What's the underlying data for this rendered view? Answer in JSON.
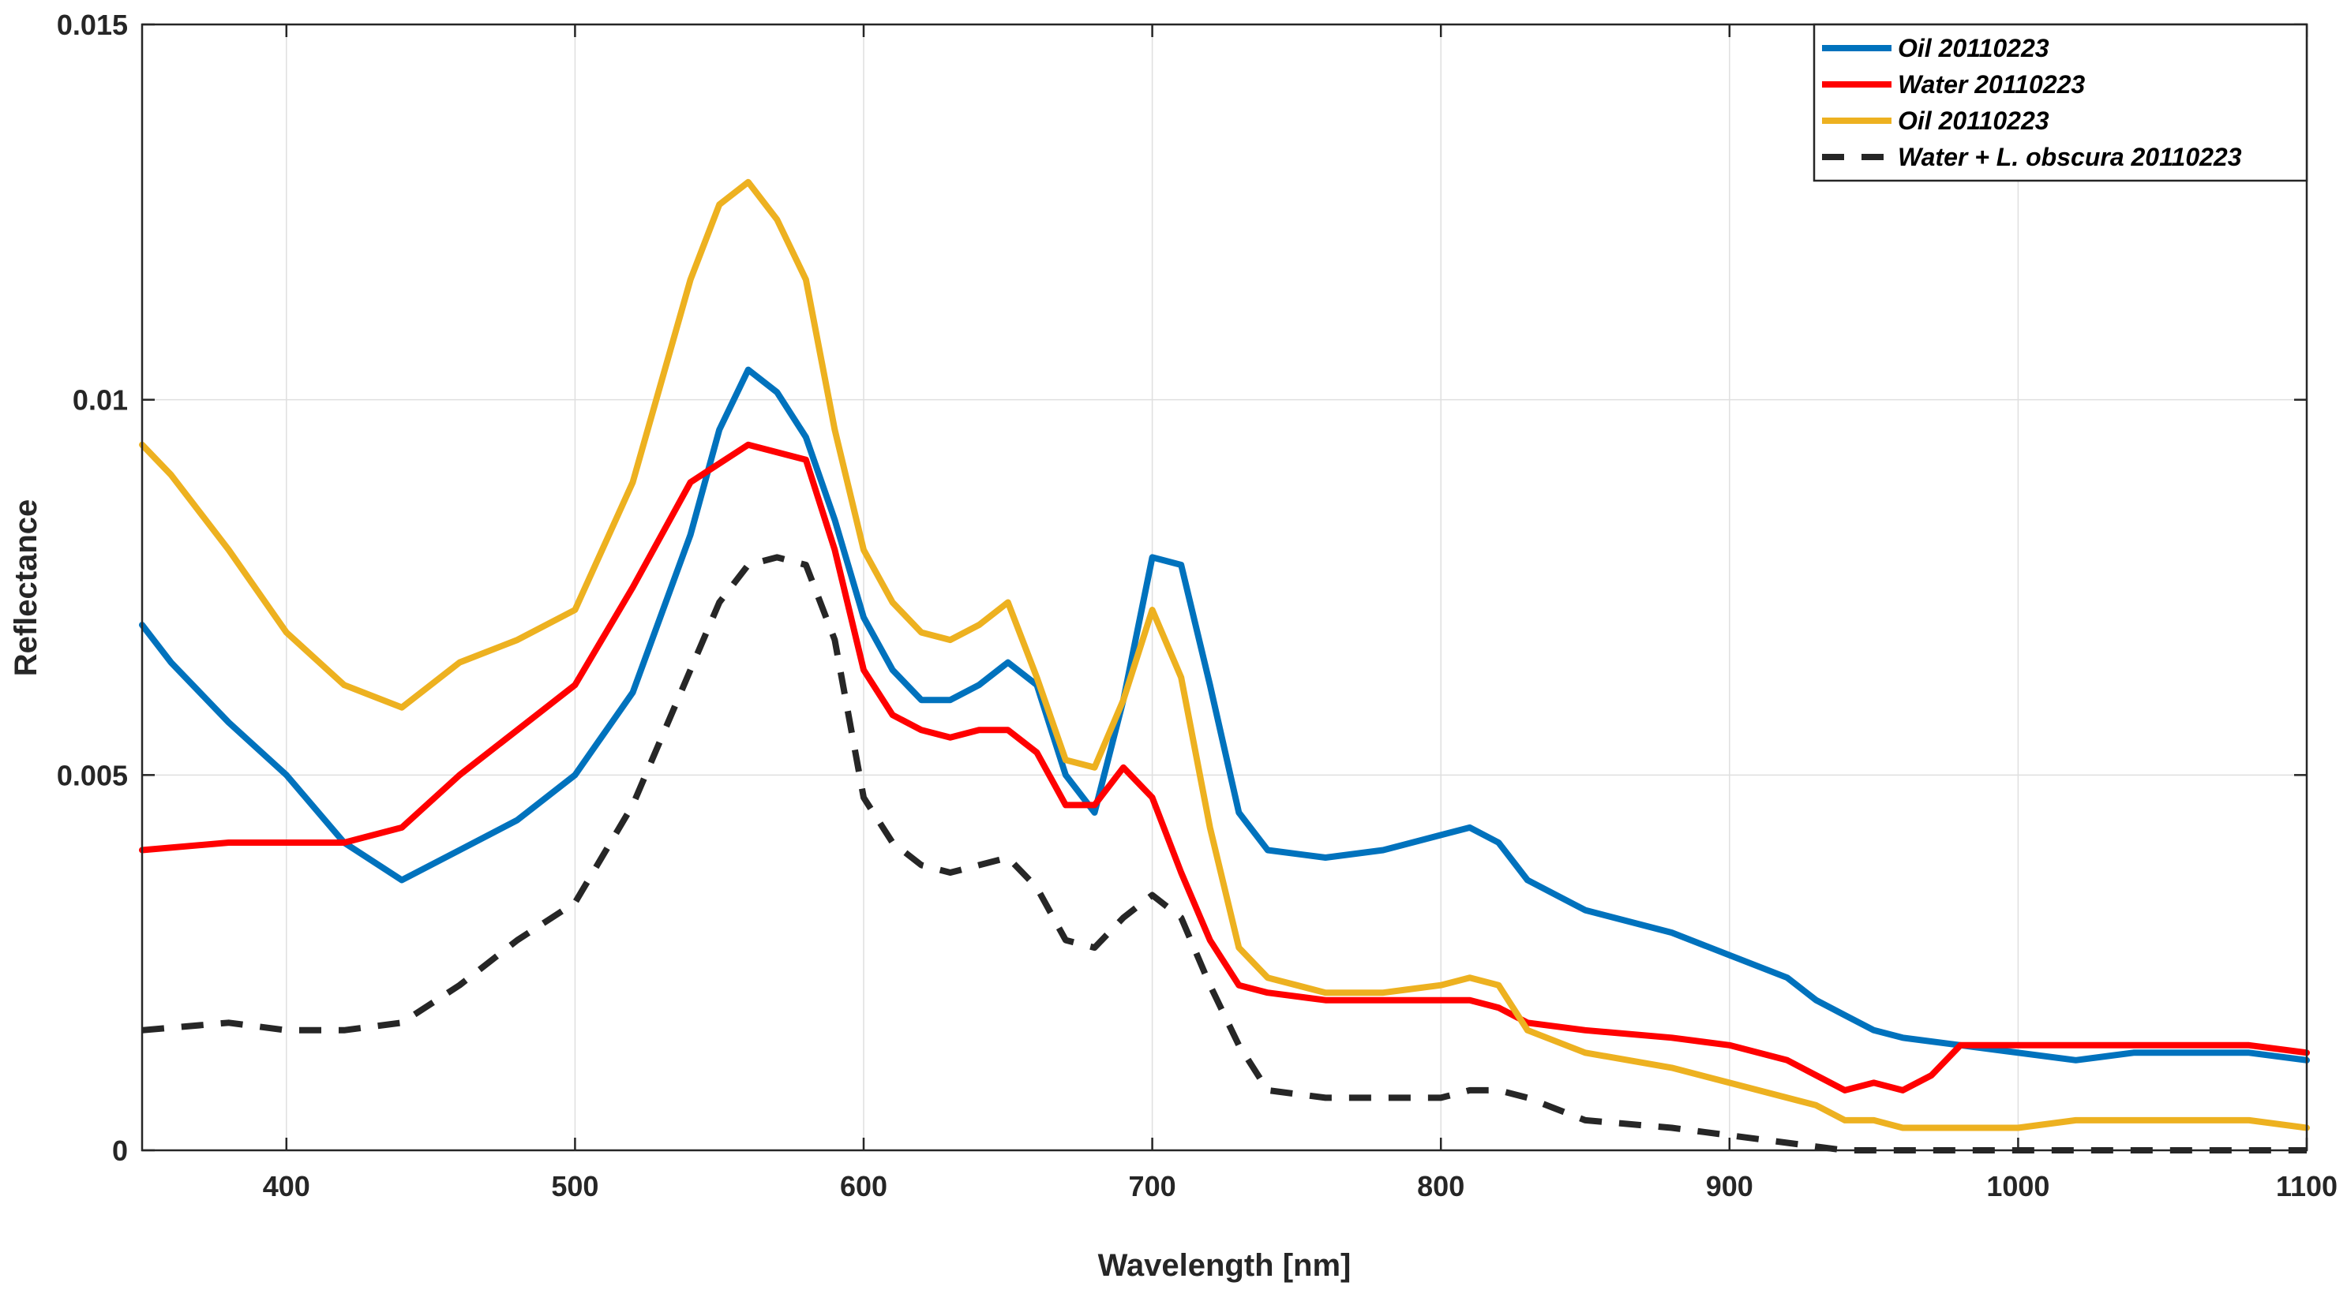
{
  "chart_data": {
    "type": "line",
    "title": "",
    "xlabel": "Wavelength [nm]",
    "ylabel": "Reflectance",
    "xlim": [
      350,
      1100
    ],
    "ylim": [
      0,
      0.015
    ],
    "grid": true,
    "legend_position": "top-right",
    "x_ticks": [
      400,
      500,
      600,
      700,
      800,
      900,
      1000,
      1100
    ],
    "x_tick_labels": [
      "400",
      "500",
      "600",
      "700",
      "800",
      "900",
      "1000",
      "1100"
    ],
    "y_ticks": [
      0,
      0.005,
      0.01,
      0.015
    ],
    "y_tick_labels": [
      "0",
      "0.005",
      "0.01",
      "0.015"
    ],
    "series": [
      {
        "name": "Oil 20110223",
        "color": "#0072BD",
        "dashed": false,
        "x": [
          350,
          360,
          380,
          400,
          420,
          440,
          460,
          480,
          500,
          520,
          540,
          550,
          560,
          570,
          580,
          590,
          600,
          610,
          620,
          630,
          640,
          650,
          660,
          670,
          680,
          690,
          700,
          710,
          720,
          730,
          740,
          760,
          780,
          800,
          810,
          820,
          830,
          850,
          880,
          900,
          920,
          930,
          940,
          950,
          960,
          980,
          1000,
          1020,
          1040,
          1060,
          1080,
          1100
        ],
        "values": [
          0.007,
          0.0065,
          0.0057,
          0.005,
          0.0041,
          0.0036,
          0.004,
          0.0044,
          0.005,
          0.0061,
          0.0082,
          0.0096,
          0.0104,
          0.0101,
          0.0095,
          0.0084,
          0.0071,
          0.0064,
          0.006,
          0.006,
          0.0062,
          0.0065,
          0.0062,
          0.005,
          0.0045,
          0.006,
          0.0079,
          0.0078,
          0.0062,
          0.0045,
          0.004,
          0.0039,
          0.004,
          0.0042,
          0.0043,
          0.0041,
          0.0036,
          0.0032,
          0.0029,
          0.0026,
          0.0023,
          0.002,
          0.0018,
          0.0016,
          0.0015,
          0.0014,
          0.0013,
          0.0012,
          0.0013,
          0.0013,
          0.0013,
          0.0012
        ]
      },
      {
        "name": "Water 20110223",
        "color": "#FF0000",
        "dashed": false,
        "x": [
          350,
          380,
          400,
          420,
          440,
          460,
          480,
          500,
          520,
          540,
          560,
          570,
          580,
          590,
          600,
          610,
          620,
          630,
          640,
          650,
          660,
          670,
          680,
          690,
          700,
          710,
          720,
          730,
          740,
          760,
          780,
          800,
          810,
          820,
          830,
          850,
          880,
          900,
          920,
          930,
          940,
          950,
          960,
          970,
          980,
          1000,
          1020,
          1040,
          1060,
          1080,
          1100
        ],
        "values": [
          0.004,
          0.0041,
          0.0041,
          0.0041,
          0.0043,
          0.005,
          0.0056,
          0.0062,
          0.0075,
          0.0089,
          0.0094,
          0.0093,
          0.0092,
          0.008,
          0.0064,
          0.0058,
          0.0056,
          0.0055,
          0.0056,
          0.0056,
          0.0053,
          0.0046,
          0.0046,
          0.0051,
          0.0047,
          0.0037,
          0.0028,
          0.0022,
          0.0021,
          0.002,
          0.002,
          0.002,
          0.002,
          0.0019,
          0.0017,
          0.0016,
          0.0015,
          0.0014,
          0.0012,
          0.001,
          0.0008,
          0.0009,
          0.0008,
          0.001,
          0.0014,
          0.0014,
          0.0014,
          0.0014,
          0.0014,
          0.0014,
          0.0013
        ]
      },
      {
        "name": "Oil 20110223",
        "color": "#EDB120",
        "dashed": false,
        "x": [
          350,
          360,
          380,
          400,
          420,
          440,
          460,
          480,
          500,
          520,
          540,
          550,
          560,
          570,
          580,
          590,
          600,
          610,
          620,
          630,
          640,
          650,
          660,
          670,
          680,
          690,
          700,
          710,
          720,
          730,
          740,
          760,
          780,
          800,
          810,
          820,
          830,
          850,
          880,
          900,
          920,
          930,
          940,
          950,
          960,
          980,
          1000,
          1020,
          1040,
          1060,
          1080,
          1100
        ],
        "values": [
          0.0094,
          0.009,
          0.008,
          0.0069,
          0.0062,
          0.0059,
          0.0065,
          0.0068,
          0.0072,
          0.0089,
          0.0116,
          0.0126,
          0.0129,
          0.0124,
          0.0116,
          0.0096,
          0.008,
          0.0073,
          0.0069,
          0.0068,
          0.007,
          0.0073,
          0.0063,
          0.0052,
          0.0051,
          0.006,
          0.0072,
          0.0063,
          0.0043,
          0.0027,
          0.0023,
          0.0021,
          0.0021,
          0.0022,
          0.0023,
          0.0022,
          0.0016,
          0.0013,
          0.0011,
          0.0009,
          0.0007,
          0.0006,
          0.0004,
          0.0004,
          0.0003,
          0.0003,
          0.0003,
          0.0004,
          0.0004,
          0.0004,
          0.0004,
          0.0003
        ]
      },
      {
        "name": "Water + L. obscura 20110223",
        "color": "#262626",
        "dashed": true,
        "x": [
          350,
          380,
          400,
          420,
          440,
          460,
          480,
          500,
          520,
          540,
          550,
          560,
          570,
          580,
          590,
          600,
          610,
          620,
          630,
          640,
          650,
          660,
          670,
          680,
          690,
          700,
          710,
          720,
          730,
          740,
          760,
          780,
          800,
          810,
          820,
          830,
          850,
          880,
          900,
          920,
          940,
          960,
          980,
          1000,
          1020,
          1040,
          1060,
          1080,
          1100
        ],
        "values": [
          0.0016,
          0.0017,
          0.0016,
          0.0016,
          0.0017,
          0.0022,
          0.0028,
          0.0033,
          0.0046,
          0.0064,
          0.0073,
          0.0078,
          0.0079,
          0.0078,
          0.0068,
          0.0047,
          0.0041,
          0.0038,
          0.0037,
          0.0038,
          0.0039,
          0.0035,
          0.0028,
          0.0027,
          0.0031,
          0.0034,
          0.0031,
          0.0022,
          0.0014,
          0.0008,
          0.0007,
          0.0007,
          0.0007,
          0.0008,
          0.0008,
          0.0007,
          0.0004,
          0.0003,
          0.0002,
          0.0001,
          0.0,
          0.0,
          0.0,
          0.0,
          0.0,
          0.0,
          0.0,
          0.0,
          0.0
        ]
      }
    ]
  }
}
